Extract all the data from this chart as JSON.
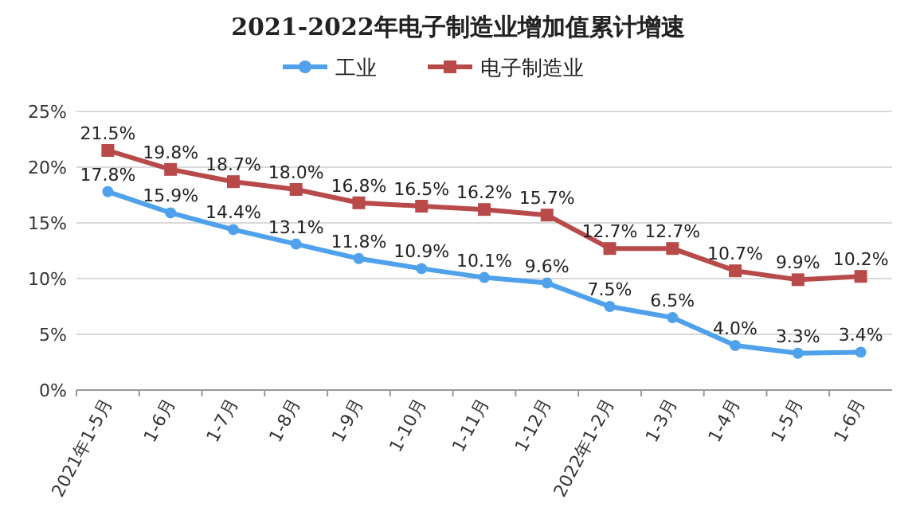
{
  "chart_data": {
    "type": "line",
    "title": "2021-2022年电子制造业增加值累计增速",
    "categories": [
      "2021年1-5月",
      "1-6月",
      "1-7月",
      "1-8月",
      "1-9月",
      "1-10月",
      "1-11月",
      "1-12月",
      "2022年1-2月",
      "1-3月",
      "1-4月",
      "1-5月",
      "1-6月"
    ],
    "series": [
      {
        "name": "工业",
        "color": "#4ea1ea",
        "marker": "circle",
        "values": [
          17.8,
          15.9,
          14.4,
          13.1,
          11.8,
          10.9,
          10.1,
          9.6,
          7.5,
          6.5,
          4.0,
          3.3,
          3.4
        ],
        "value_labels": [
          "17.8%",
          "15.9%",
          "14.4%",
          "13.1%",
          "11.8%",
          "10.9%",
          "10.1%",
          "9.6%",
          "7.5%",
          "6.5%",
          "4.0%",
          "3.3%",
          "3.4%"
        ]
      },
      {
        "name": "电子制造业",
        "color": "#b84a4a",
        "marker": "square",
        "values": [
          21.5,
          19.8,
          18.7,
          18.0,
          16.8,
          16.5,
          16.2,
          15.7,
          12.7,
          12.7,
          10.7,
          9.9,
          10.2
        ],
        "value_labels": [
          "21.5%",
          "19.8%",
          "18.7%",
          "18.0%",
          "16.8%",
          "16.5%",
          "16.2%",
          "15.7%",
          "12.7%",
          "12.7%",
          "10.7%",
          "9.9%",
          "10.2%"
        ]
      }
    ],
    "ylim": [
      0,
      25
    ],
    "yticks": [
      {
        "value": 0,
        "label": "0%"
      },
      {
        "value": 5,
        "label": "5%"
      },
      {
        "value": 10,
        "label": "10%"
      },
      {
        "value": 15,
        "label": "15%"
      },
      {
        "value": 20,
        "label": "20%"
      },
      {
        "value": 25,
        "label": "25%"
      }
    ],
    "grid": "y",
    "legend": "top",
    "line_style": "solid"
  }
}
